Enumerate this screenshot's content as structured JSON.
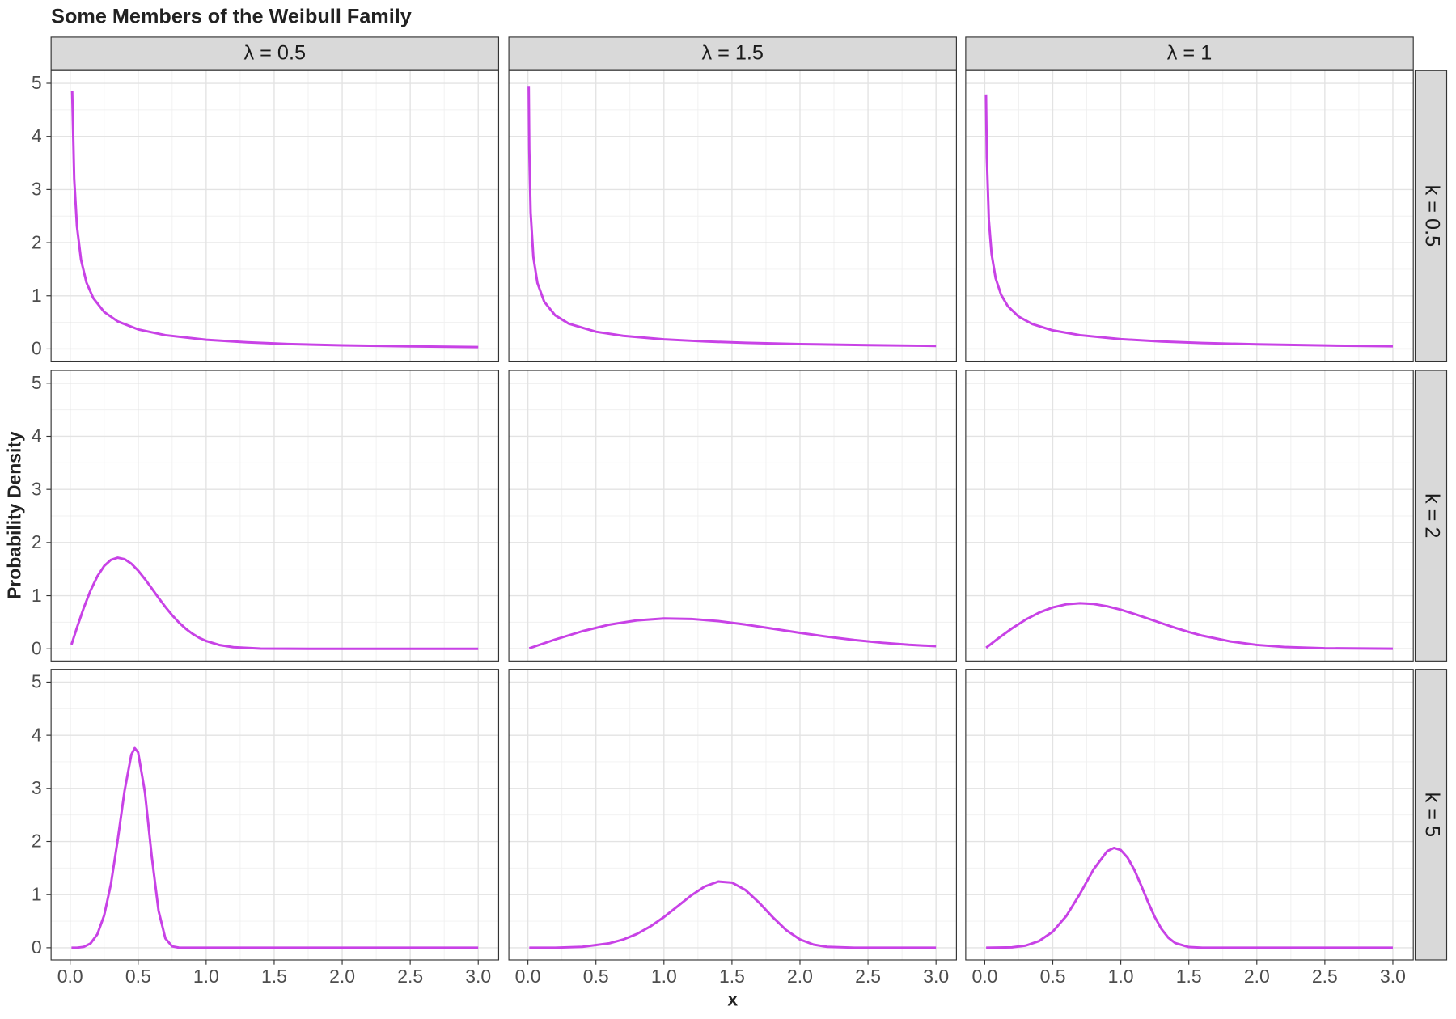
{
  "chart_data": {
    "type": "line",
    "title": "Some Members of the Weibull Family",
    "x_label": "x",
    "y_label": "Probability Density",
    "color": "#c842e6",
    "grid": true,
    "xlim": [
      -0.14,
      3.15
    ],
    "ylim": [
      -0.23,
      5.24
    ],
    "xticks": [
      {
        "value": 0,
        "label": "0.0"
      },
      0.5,
      {
        "value": 1,
        "label": "1.0"
      },
      1.5,
      {
        "value": 2,
        "label": "2.0"
      },
      2.5,
      {
        "value": 3,
        "label": "3.0"
      }
    ],
    "yticks": [
      0,
      1,
      2,
      3,
      4,
      5
    ],
    "xticks_minor": [
      0.25,
      0.75,
      1.25,
      1.75,
      2.25,
      2.75
    ],
    "yticks_minor": [
      0.5,
      1.5,
      2.5,
      3.5,
      4.5
    ],
    "columns": [
      "λ = 0.5",
      "λ = 1.5",
      "λ = 1"
    ],
    "rows": [
      {
        "label": "k = 0.5",
        "panels": [
          {
            "x": [
              0.015,
              0.03,
              0.05,
              0.08,
              0.12,
              0.17,
              0.25,
              0.35,
              0.5,
              0.7,
              1.0,
              1.3,
              1.6,
              2.0,
              2.5,
              3.0
            ],
            "values": [
              4.86,
              3.2,
              2.31,
              1.68,
              1.25,
              0.957,
              0.697,
              0.518,
              0.368,
              0.259,
              0.172,
              0.124,
              0.093,
              0.068,
              0.048,
              0.035
            ]
          },
          {
            "x": [
              0.006,
              0.01,
              0.02,
              0.04,
              0.07,
              0.12,
              0.2,
              0.3,
              0.5,
              0.7,
              1.0,
              1.3,
              1.6,
              2.0,
              2.5,
              3.0
            ],
            "values": [
              4.95,
              3.76,
              2.57,
              1.73,
              1.24,
              0.888,
              0.634,
              0.476,
              0.324,
              0.246,
              0.18,
              0.141,
              0.115,
              0.091,
              0.071,
              0.057
            ]
          },
          {
            "x": [
              0.009,
              0.015,
              0.03,
              0.05,
              0.08,
              0.12,
              0.17,
              0.25,
              0.35,
              0.5,
              0.7,
              1.0,
              1.3,
              1.6,
              2.0,
              2.5,
              3.0
            ],
            "values": [
              4.79,
              3.61,
              2.43,
              1.79,
              1.33,
              1.02,
              0.803,
              0.607,
              0.468,
              0.349,
              0.259,
              0.184,
              0.14,
              0.112,
              0.086,
              0.065,
              0.051
            ]
          }
        ]
      },
      {
        "label": "k = 2",
        "panels": [
          {
            "x": [
              0.01,
              0.05,
              0.1,
              0.15,
              0.2,
              0.25,
              0.3,
              0.35,
              0.4,
              0.45,
              0.5,
              0.55,
              0.6,
              0.65,
              0.7,
              0.75,
              0.8,
              0.85,
              0.9,
              0.95,
              1.0,
              1.1,
              1.2,
              1.4,
              1.6,
              2.0,
              2.5,
              3.0
            ],
            "values": [
              0.08,
              0.396,
              0.769,
              1.097,
              1.363,
              1.558,
              1.674,
              1.715,
              1.687,
              1.602,
              1.472,
              1.312,
              1.137,
              0.959,
              0.789,
              0.632,
              0.495,
              0.378,
              0.282,
              0.205,
              0.147,
              0.07,
              0.03,
              0.004,
              0.001,
              0,
              0,
              0
            ]
          },
          {
            "x": [
              0.01,
              0.2,
              0.4,
              0.6,
              0.8,
              1.0,
              1.2,
              1.4,
              1.6,
              1.8,
              2.0,
              2.2,
              2.4,
              2.6,
              2.8,
              3.0
            ],
            "values": [
              0.009,
              0.175,
              0.331,
              0.455,
              0.535,
              0.57,
              0.562,
              0.521,
              0.456,
              0.379,
              0.3,
              0.228,
              0.165,
              0.115,
              0.076,
              0.049
            ]
          },
          {
            "x": [
              0.01,
              0.1,
              0.2,
              0.3,
              0.4,
              0.5,
              0.6,
              0.7,
              0.8,
              0.9,
              1.0,
              1.1,
              1.2,
              1.3,
              1.4,
              1.5,
              1.6,
              1.8,
              2.0,
              2.2,
              2.5,
              3.0
            ],
            "values": [
              0.02,
              0.198,
              0.384,
              0.548,
              0.682,
              0.779,
              0.838,
              0.858,
              0.844,
              0.8,
              0.736,
              0.656,
              0.569,
              0.481,
              0.395,
              0.316,
              0.247,
              0.141,
              0.073,
              0.035,
              0.01,
              0.001
            ]
          }
        ]
      },
      {
        "label": "k = 5",
        "panels": [
          {
            "x": [
              0.01,
              0.05,
              0.1,
              0.15,
              0.2,
              0.25,
              0.3,
              0.35,
              0.4,
              0.45,
              0.475,
              0.5,
              0.55,
              0.6,
              0.65,
              0.7,
              0.75,
              0.8,
              0.9,
              1.0,
              1.5,
              2.0,
              2.5,
              3.0
            ],
            "values": [
              0,
              0.001,
              0.016,
              0.081,
              0.253,
              0.606,
              1.199,
              2.03,
              2.951,
              3.635,
              3.757,
              3.679,
              2.924,
              1.721,
              0.697,
              0.177,
              0.026,
              0.002,
              0,
              0,
              0,
              0,
              0,
              0
            ]
          },
          {
            "x": [
              0.01,
              0.2,
              0.4,
              0.6,
              0.7,
              0.8,
              0.9,
              1.0,
              1.1,
              1.2,
              1.3,
              1.4,
              1.5,
              1.6,
              1.7,
              1.8,
              1.9,
              2.0,
              2.1,
              2.2,
              2.4,
              2.6,
              3.0
            ],
            "values": [
              0,
              0.001,
              0.017,
              0.085,
              0.155,
              0.258,
              0.4,
              0.577,
              0.78,
              0.984,
              1.153,
              1.246,
              1.226,
              1.085,
              0.848,
              0.574,
              0.329,
              0.156,
              0.059,
              0.017,
              0.001,
              0,
              0
            ]
          },
          {
            "x": [
              0.01,
              0.2,
              0.3,
              0.4,
              0.5,
              0.6,
              0.7,
              0.8,
              0.9,
              0.95,
              1.0,
              1.05,
              1.1,
              1.15,
              1.2,
              1.25,
              1.3,
              1.35,
              1.4,
              1.5,
              1.6,
              2.0,
              3.0
            ],
            "values": [
              0,
              0.008,
              0.04,
              0.127,
              0.303,
              0.6,
              1.015,
              1.476,
              1.818,
              1.879,
              1.839,
              1.696,
              1.463,
              1.17,
              0.862,
              0.577,
              0.349,
              0.188,
              0.089,
              0.013,
              0.001,
              0,
              0
            ]
          }
        ]
      }
    ]
  }
}
